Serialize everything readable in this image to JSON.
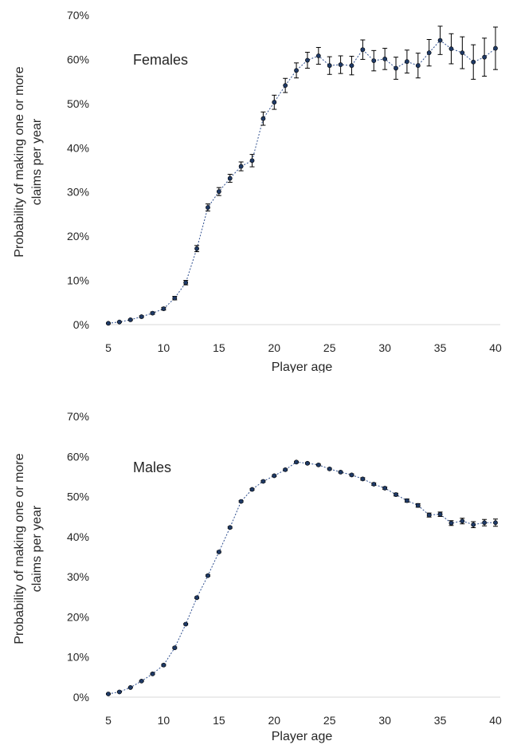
{
  "chart_data": [
    {
      "type": "line",
      "annotation": "Females",
      "xlabel": "Player age",
      "ylabel_line1": "Probability of making one or more",
      "ylabel_line2": "claims per year",
      "xlim": [
        5,
        40
      ],
      "ylim": [
        0,
        70
      ],
      "x_ticks": [
        5,
        10,
        15,
        20,
        25,
        30,
        35,
        40
      ],
      "y_ticks": [
        0,
        10,
        20,
        30,
        40,
        50,
        60,
        70
      ],
      "y_tick_labels": [
        "0%",
        "10%",
        "20%",
        "30%",
        "40%",
        "50%",
        "60%",
        "70%"
      ],
      "grid": false,
      "error_bars": true,
      "series": [
        {
          "color": "#2f4f8f",
          "x": [
            5,
            6,
            7,
            8,
            9,
            10,
            11,
            12,
            13,
            14,
            15,
            16,
            17,
            18,
            19,
            20,
            21,
            22,
            23,
            24,
            25,
            26,
            27,
            28,
            29,
            30,
            31,
            32,
            33,
            34,
            35,
            36,
            37,
            38,
            39,
            40
          ],
          "y": [
            0.3,
            0.6,
            1.1,
            1.8,
            2.6,
            3.6,
            6.0,
            9.5,
            17.2,
            26.5,
            30.1,
            33.1,
            35.8,
            37.1,
            46.6,
            50.3,
            54.1,
            57.5,
            59.8,
            60.8,
            58.6,
            58.8,
            58.6,
            62.2,
            59.7,
            60.1,
            58.0,
            59.5,
            58.6,
            61.5,
            64.3,
            62.4,
            61.5,
            59.4,
            60.5,
            62.5
          ],
          "err": [
            0.1,
            0.1,
            0.15,
            0.2,
            0.25,
            0.3,
            0.4,
            0.5,
            0.7,
            0.8,
            0.9,
            0.9,
            1.0,
            1.4,
            1.5,
            1.6,
            1.6,
            1.7,
            1.8,
            1.9,
            2.0,
            2.0,
            2.1,
            2.2,
            2.3,
            2.4,
            2.5,
            2.6,
            2.8,
            3.0,
            3.2,
            3.4,
            3.6,
            3.9,
            4.3,
            4.8
          ]
        }
      ]
    },
    {
      "type": "line",
      "annotation": "Males",
      "xlabel": "Player age",
      "ylabel_line1": "Probability of making one or more",
      "ylabel_line2": "claims per year",
      "xlim": [
        5,
        40
      ],
      "ylim": [
        0,
        70
      ],
      "x_ticks": [
        5,
        10,
        15,
        20,
        25,
        30,
        35,
        40
      ],
      "y_ticks": [
        0,
        10,
        20,
        30,
        40,
        50,
        60,
        70
      ],
      "y_tick_labels": [
        "0%",
        "10%",
        "20%",
        "30%",
        "40%",
        "50%",
        "60%",
        "70%"
      ],
      "grid": false,
      "error_bars": true,
      "series": [
        {
          "color": "#2f4f8f",
          "x": [
            5,
            6,
            7,
            8,
            9,
            10,
            11,
            12,
            13,
            14,
            15,
            16,
            17,
            18,
            19,
            20,
            21,
            22,
            23,
            24,
            25,
            26,
            27,
            28,
            29,
            30,
            31,
            32,
            33,
            34,
            35,
            36,
            37,
            38,
            39,
            40
          ],
          "y": [
            0.8,
            1.3,
            2.4,
            4.0,
            5.8,
            8.0,
            12.3,
            18.2,
            24.8,
            30.3,
            36.2,
            42.3,
            48.8,
            51.8,
            53.8,
            55.2,
            56.7,
            58.6,
            58.3,
            57.9,
            56.9,
            56.1,
            55.4,
            54.4,
            53.1,
            52.1,
            50.5,
            49.0,
            47.8,
            45.4,
            45.6,
            43.4,
            43.9,
            43.0,
            43.5,
            43.5
          ],
          "err": [
            0.1,
            0.1,
            0.1,
            0.1,
            0.15,
            0.2,
            0.2,
            0.2,
            0.2,
            0.2,
            0.2,
            0.2,
            0.2,
            0.2,
            0.2,
            0.2,
            0.2,
            0.2,
            0.2,
            0.2,
            0.2,
            0.2,
            0.25,
            0.3,
            0.3,
            0.3,
            0.35,
            0.4,
            0.45,
            0.5,
            0.55,
            0.6,
            0.7,
            0.75,
            0.8,
            0.9
          ]
        }
      ]
    }
  ]
}
